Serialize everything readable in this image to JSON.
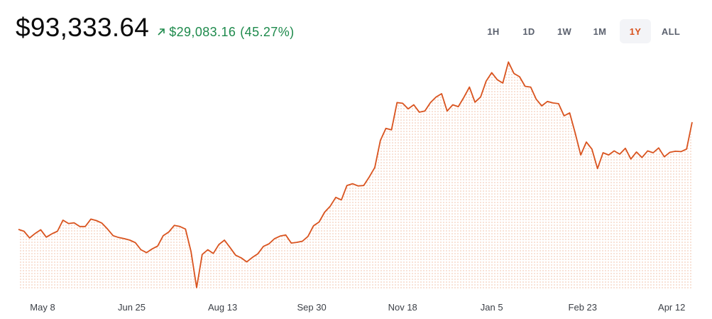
{
  "price": "$93,333.64",
  "change": {
    "amount": "$29,083.16",
    "percent": "(45.27%)",
    "direction_icon": "arrow-up-right-icon",
    "color": "#1e8a4c"
  },
  "ranges": [
    {
      "label": "1H",
      "active": false
    },
    {
      "label": "1D",
      "active": false
    },
    {
      "label": "1W",
      "active": false
    },
    {
      "label": "1M",
      "active": false
    },
    {
      "label": "1Y",
      "active": true
    },
    {
      "label": "ALL",
      "active": false
    }
  ],
  "colors": {
    "line": "#d9531e",
    "fill_dots": "#f2c9b5",
    "active_range": "#d9531e"
  },
  "chart_data": {
    "type": "area",
    "title": "",
    "xlabel": "",
    "ylabel": "",
    "x_ticks": [
      "May 8",
      "Jun 25",
      "Aug 13",
      "Sep 30",
      "Nov 18",
      "Jan 5",
      "Feb 23",
      "Apr 12"
    ],
    "x_range": [
      "Apr 25",
      "Apr 23"
    ],
    "ylim": [
      48000,
      111000
    ],
    "grid": false,
    "legend": "none",
    "series": [
      {
        "x": [
          "Apr 25",
          "Apr 28",
          "May 1",
          "May 4",
          "May 7",
          "May 10",
          "May 13",
          "May 16",
          "May 19",
          "May 22",
          "May 25",
          "May 28",
          "May 31",
          "Jun 3",
          "Jun 6",
          "Jun 9",
          "Jun 12",
          "Jun 15",
          "Jun 18",
          "Jun 21",
          "Jun 24",
          "Jun 27",
          "Jun 30",
          "Jul 3",
          "Jul 6",
          "Jul 9",
          "Jul 12",
          "Jul 15",
          "Jul 18",
          "Jul 21",
          "Jul 24",
          "Jul 27",
          "Jul 30",
          "Aug 2",
          "Aug 5",
          "Aug 8",
          "Aug 11",
          "Aug 14",
          "Aug 17",
          "Aug 20",
          "Aug 23",
          "Aug 26",
          "Aug 29",
          "Sep 1",
          "Sep 4",
          "Sep 7",
          "Sep 10",
          "Sep 13",
          "Sep 16",
          "Sep 19",
          "Sep 22",
          "Sep 25",
          "Sep 28",
          "Oct 1",
          "Oct 4",
          "Oct 7",
          "Oct 10",
          "Oct 13",
          "Oct 16",
          "Oct 19",
          "Oct 22",
          "Oct 25",
          "Oct 28",
          "Oct 31",
          "Nov 3",
          "Nov 6",
          "Nov 9",
          "Nov 12",
          "Nov 15",
          "Nov 18",
          "Nov 21",
          "Nov 24",
          "Nov 27",
          "Nov 30",
          "Dec 3",
          "Dec 6",
          "Dec 9",
          "Dec 12",
          "Dec 15",
          "Dec 18",
          "Dec 21",
          "Dec 24",
          "Dec 27",
          "Dec 30",
          "Jan 2",
          "Jan 5",
          "Jan 8",
          "Jan 11",
          "Jan 14",
          "Jan 17",
          "Jan 20",
          "Jan 23",
          "Jan 26",
          "Jan 29",
          "Feb 1",
          "Feb 4",
          "Feb 7",
          "Feb 10",
          "Feb 13",
          "Feb 16",
          "Feb 19",
          "Feb 22",
          "Feb 25",
          "Feb 28",
          "Mar 3",
          "Mar 6",
          "Mar 9",
          "Mar 12",
          "Mar 15",
          "Mar 18",
          "Mar 21",
          "Mar 24",
          "Mar 27",
          "Mar 30",
          "Apr 2",
          "Apr 5",
          "Apr 8",
          "Apr 11",
          "Apr 14",
          "Apr 17",
          "Apr 20",
          "Apr 23"
        ],
        "values": [
          64200,
          63700,
          61900,
          63100,
          64100,
          62100,
          63000,
          63700,
          66700,
          65800,
          66000,
          65000,
          65000,
          67000,
          66600,
          65900,
          64300,
          62500,
          62000,
          61700,
          61300,
          60600,
          58700,
          57900,
          58900,
          59700,
          62500,
          63500,
          65300,
          65000,
          64300,
          58200,
          48400,
          57400,
          58700,
          57700,
          60100,
          61300,
          59300,
          57200,
          56500,
          55400,
          56600,
          57600,
          59600,
          60300,
          61700,
          62400,
          62700,
          60500,
          60700,
          61000,
          62300,
          65200,
          66200,
          68900,
          70500,
          72900,
          72200,
          76100,
          76600,
          76000,
          76100,
          78400,
          81000,
          88300,
          91600,
          91200,
          98600,
          98400,
          96900,
          98000,
          96000,
          96300,
          98600,
          100100,
          101000,
          96300,
          98000,
          97500,
          100000,
          102800,
          98700,
          100100,
          104400,
          106700,
          104800,
          103900,
          109600,
          106500,
          105600,
          103000,
          102800,
          99500,
          97700,
          98900,
          98500,
          98300,
          95000,
          95800,
          90300,
          84400,
          87900,
          86000,
          80700,
          85000,
          84400,
          85500,
          84600,
          86200,
          83300,
          85200,
          83700,
          85500,
          85000,
          86300,
          83900,
          85100,
          85400,
          85300,
          86000,
          93300
        ]
      }
    ]
  }
}
